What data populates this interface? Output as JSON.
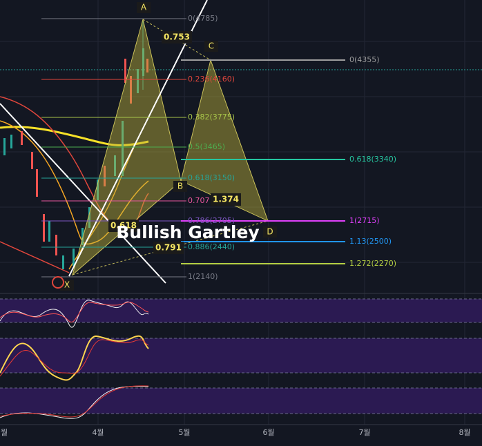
{
  "pattern_title": "Bullish Gartley",
  "points": {
    "A": "A",
    "B": "B",
    "C": "C",
    "D": "D",
    "X": "X"
  },
  "ratios": [
    "0.753",
    "1.374",
    "0.618",
    "0.791"
  ],
  "fib_levels_xab": [
    "0(4785)",
    "0.236(4160)",
    "0.382(3775)",
    "0.5(3465)",
    "0.618(3150)",
    "0.707",
    "0.786(2705)",
    "0.886(2440)",
    "1(2140)"
  ],
  "fib_levels_bcd": [
    "0(4355)",
    "0.618(3340)",
    "1(2715)",
    "1.13(2500)",
    "1.272(2270)"
  ],
  "x_axis_labels": [
    "월",
    "4월",
    "5월",
    "6월",
    "7월",
    "8월"
  ]
}
